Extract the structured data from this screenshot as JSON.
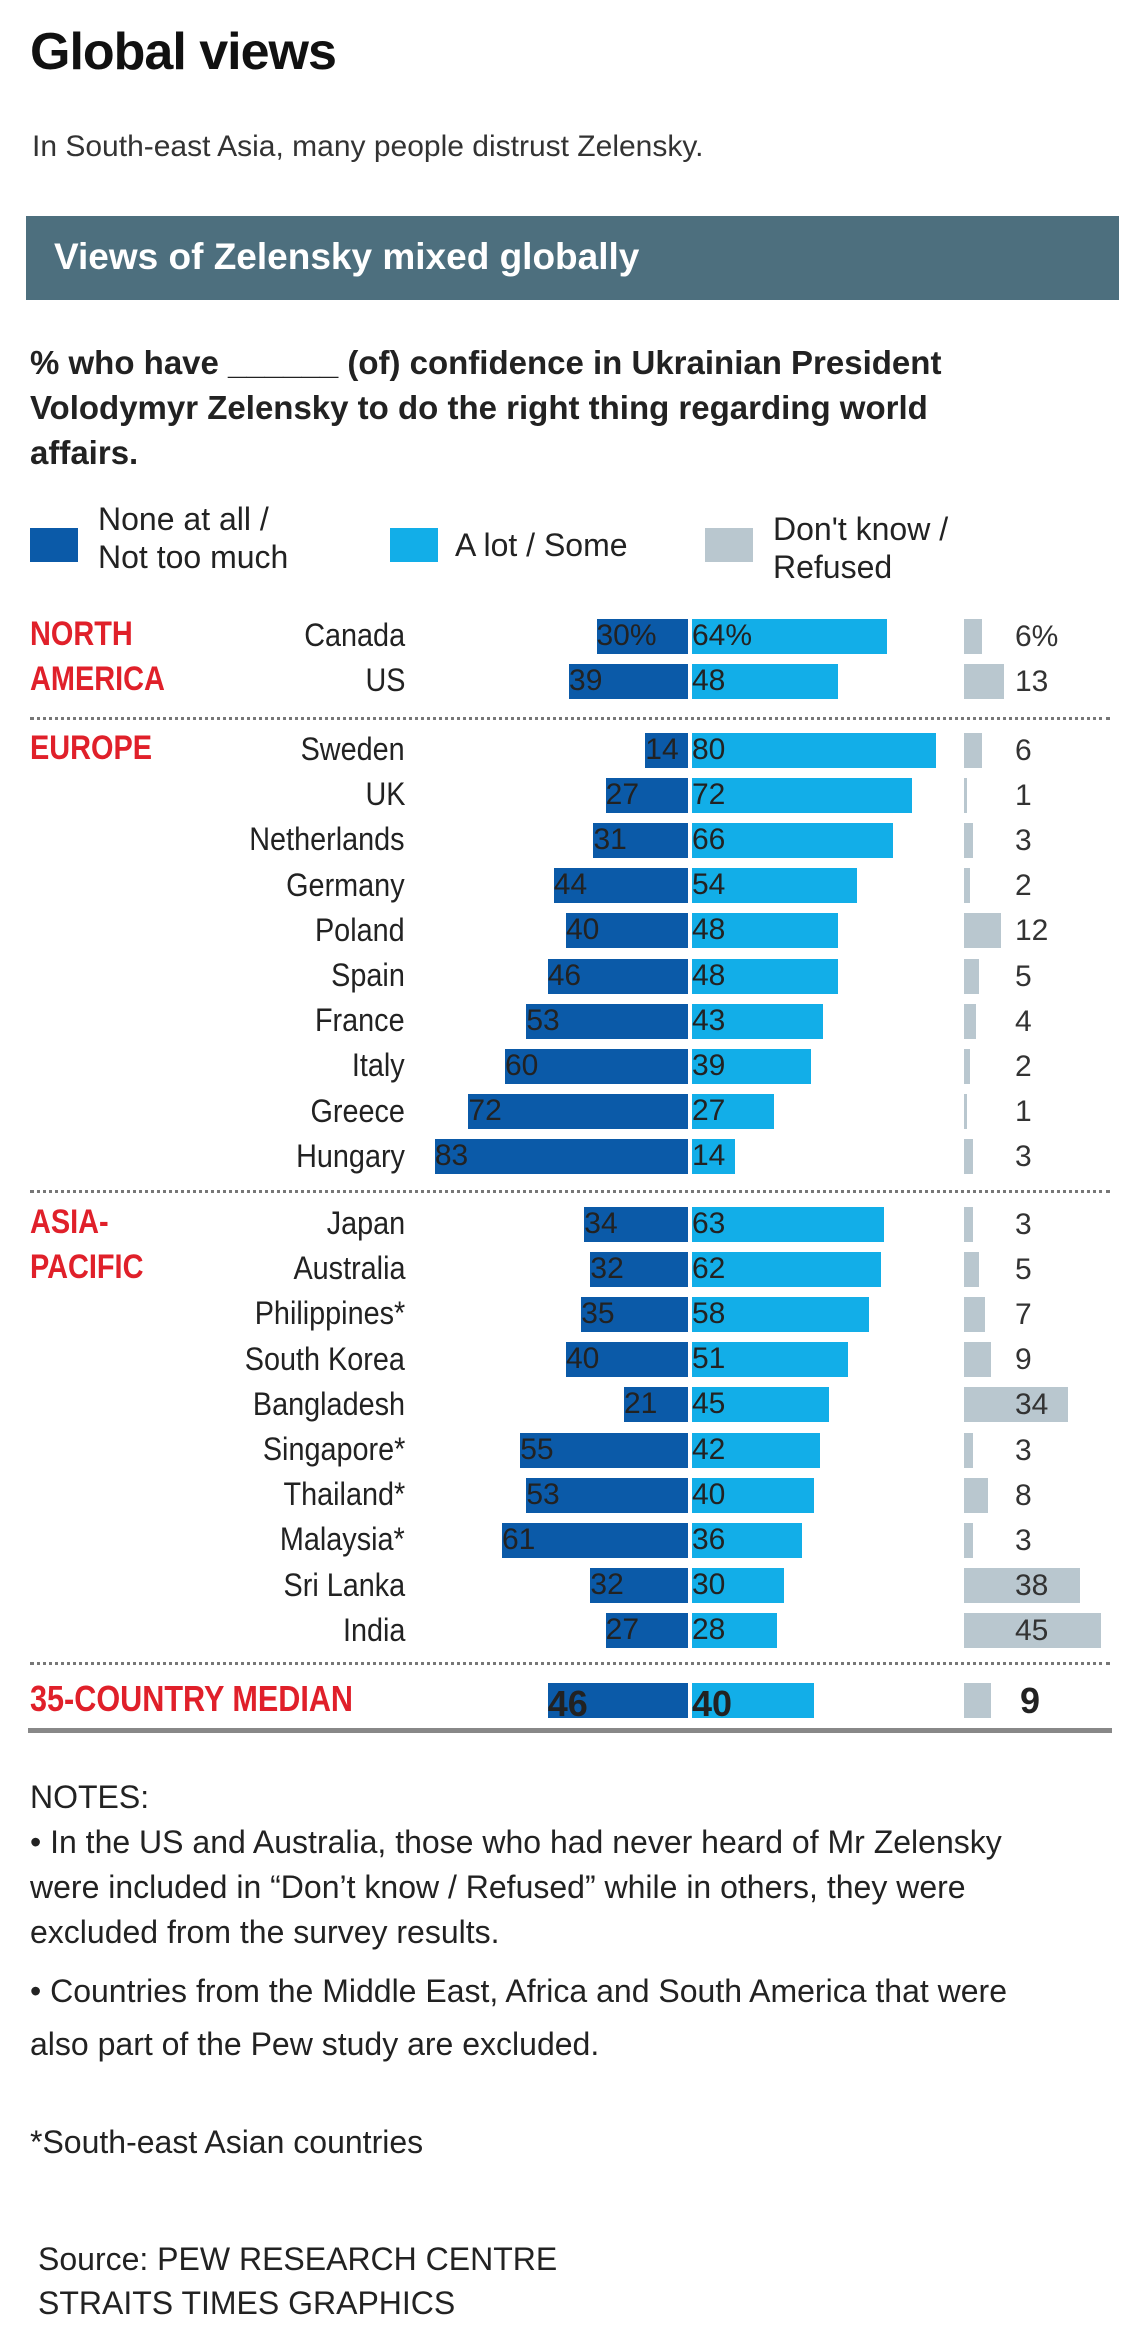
{
  "header": {
    "title": "Global views",
    "subtitle": "In South-east Asia, many people distrust Zelensky.",
    "banner": "Views of Zelensky mixed globally"
  },
  "colors": {
    "none": "#0b5aa8",
    "some": "#12aee8",
    "dontknow": "#b9c7cf",
    "region": "#e0202a",
    "banner": "#4d6f7e"
  },
  "chart_data": {
    "type": "bar",
    "title": "% who have ______ (of) confidence in Ukrainian President Volodymyr Zelensky to do the right thing regarding world affairs.",
    "legend": {
      "none": [
        "None at all /",
        "Not too much"
      ],
      "some": [
        "A lot / Some"
      ],
      "dontknow": [
        "Don't know /",
        "Refused"
      ]
    },
    "groups": [
      {
        "region": [
          "NORTH",
          "AMERICA"
        ],
        "rows": [
          {
            "country": "Canada",
            "none": 30,
            "some": 64,
            "dontknow": 6,
            "none_label": "30%",
            "some_label": "64%",
            "dk_label": "6%"
          },
          {
            "country": "US",
            "none": 39,
            "some": 48,
            "dontknow": 13
          }
        ]
      },
      {
        "region": [
          "EUROPE"
        ],
        "rows": [
          {
            "country": "Sweden",
            "none": 14,
            "some": 80,
            "dontknow": 6
          },
          {
            "country": "UK",
            "none": 27,
            "some": 72,
            "dontknow": 1
          },
          {
            "country": "Netherlands",
            "none": 31,
            "some": 66,
            "dontknow": 3
          },
          {
            "country": "Germany",
            "none": 44,
            "some": 54,
            "dontknow": 2
          },
          {
            "country": "Poland",
            "none": 40,
            "some": 48,
            "dontknow": 12
          },
          {
            "country": "Spain",
            "none": 46,
            "some": 48,
            "dontknow": 5
          },
          {
            "country": "France",
            "none": 53,
            "some": 43,
            "dontknow": 4
          },
          {
            "country": "Italy",
            "none": 60,
            "some": 39,
            "dontknow": 2
          },
          {
            "country": "Greece",
            "none": 72,
            "some": 27,
            "dontknow": 1
          },
          {
            "country": "Hungary",
            "none": 83,
            "some": 14,
            "dontknow": 3
          }
        ]
      },
      {
        "region": [
          "ASIA-",
          "PACIFIC"
        ],
        "rows": [
          {
            "country": "Japan",
            "none": 34,
            "some": 63,
            "dontknow": 3
          },
          {
            "country": "Australia",
            "none": 32,
            "some": 62,
            "dontknow": 5
          },
          {
            "country": "Philippines*",
            "none": 35,
            "some": 58,
            "dontknow": 7
          },
          {
            "country": "South Korea",
            "none": 40,
            "some": 51,
            "dontknow": 9
          },
          {
            "country": "Bangladesh",
            "none": 21,
            "some": 45,
            "dontknow": 34
          },
          {
            "country": "Singapore*",
            "none": 55,
            "some": 42,
            "dontknow": 3
          },
          {
            "country": "Thailand*",
            "none": 53,
            "some": 40,
            "dontknow": 8
          },
          {
            "country": "Malaysia*",
            "none": 61,
            "some": 36,
            "dontknow": 3
          },
          {
            "country": "Sri Lanka",
            "none": 32,
            "some": 30,
            "dontknow": 38
          },
          {
            "country": "India",
            "none": 27,
            "some": 28,
            "dontknow": 45
          }
        ]
      }
    ],
    "median": {
      "label": "35-COUNTRY MEDIAN",
      "none": 46,
      "some": 40,
      "dontknow": 9
    }
  },
  "notes": {
    "heading": "NOTES:",
    "items": [
      "• In the US and Australia, those who had never heard of Mr Zelensky were included in “Don’t know / Refused” while in others, they were excluded from the survey results.",
      "• Countries from the Middle East, Africa and South America that were also part of the Pew study are excluded."
    ],
    "footnote": "*South-east Asian countries",
    "source": "Source: PEW RESEARCH CENTRE",
    "credit": "STRAITS TIMES GRAPHICS"
  }
}
